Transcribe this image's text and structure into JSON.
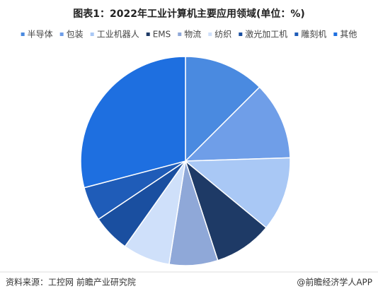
{
  "chart_data": {
    "type": "pie",
    "title": "图表1：2022年工业计算机主要应用领域(单位：%)",
    "categories": [
      "半导体",
      "包装",
      "工业机器人",
      "EMS",
      "物流",
      "纺织",
      "激光加工机",
      "雕刻机",
      "其他"
    ],
    "values": [
      12.5,
      12,
      11.5,
      9,
      7.5,
      7.3,
      5.8,
      5.3,
      29.1
    ],
    "colors": [
      "#4a8ae0",
      "#6f9ee8",
      "#a9c8f5",
      "#1e3a66",
      "#8fa8d8",
      "#cfe0fa",
      "#1a4fa0",
      "#1f5cb8",
      "#1e6fe0"
    ],
    "source": "资料来源：工控网 前瞻产业研究院",
    "credit": "@前瞻经济学人APP"
  }
}
